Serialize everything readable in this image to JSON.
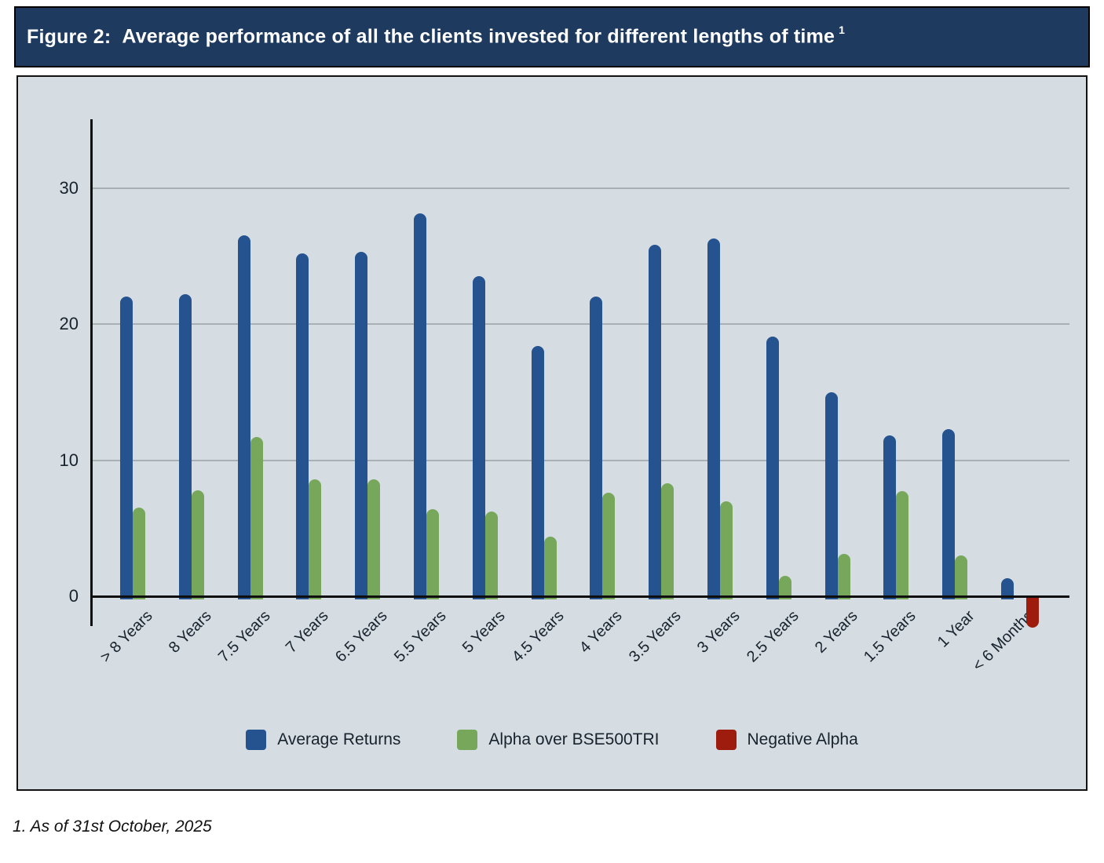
{
  "header": {
    "title_prefix": "Figure 2:",
    "title": "Average performance of all the clients invested for different lengths of time",
    "superscript": "1"
  },
  "footnote": "1. As of 31st October, 2025",
  "colors": {
    "header_bg": "#1e3a5f",
    "panel_bg": "#d5dde2",
    "blue": "#245390",
    "green": "#76a75a",
    "red": "#9e1c0e",
    "gridline": "#a8b0b4",
    "axis": "#0e0e0e",
    "tick_text": "#17222d"
  },
  "legend": [
    {
      "label": "Average Returns",
      "swatch_color": "#245390"
    },
    {
      "label": "Alpha over BSE500TRI",
      "swatch_color": "#76a75a"
    },
    {
      "label": "Negative Alpha",
      "swatch_color": "#9e1c0e"
    }
  ],
  "chart_data": {
    "type": "bar",
    "title": "Figure 2: Average performance of all the clients invested for different lengths of time",
    "categories": [
      "> 8 Years",
      "8 Years",
      "7.5 Years",
      "7 Years",
      "6.5 Years",
      "5.5 Years",
      "5 Years",
      "4.5 Years",
      "4 Years",
      "3.5 Years",
      "3 Years",
      "2.5 Years",
      "2 Years",
      "1.5 Years",
      "1 Year",
      "< 6 Months"
    ],
    "series": [
      {
        "name": "Average Returns",
        "color": "#245390",
        "values": [
          22.0,
          22.2,
          26.5,
          25.2,
          25.3,
          28.1,
          23.5,
          18.4,
          22.0,
          25.8,
          26.3,
          19.1,
          15.0,
          11.8,
          12.3,
          1.3
        ]
      },
      {
        "name": "Alpha over BSE500TRI",
        "color": "#76a75a",
        "negative_name": "Negative Alpha",
        "negative_color": "#9e1c0e",
        "values": [
          6.5,
          7.8,
          11.7,
          8.6,
          8.6,
          6.4,
          6.2,
          4.4,
          7.6,
          8.3,
          7.0,
          1.5,
          3.1,
          7.7,
          3.0,
          -2.2
        ]
      }
    ],
    "xlabel": "",
    "ylabel": "",
    "yticks": [
      0,
      10,
      20,
      30
    ],
    "ylim": [
      -3,
      35
    ],
    "grid": true,
    "legend_position": "bottom"
  }
}
